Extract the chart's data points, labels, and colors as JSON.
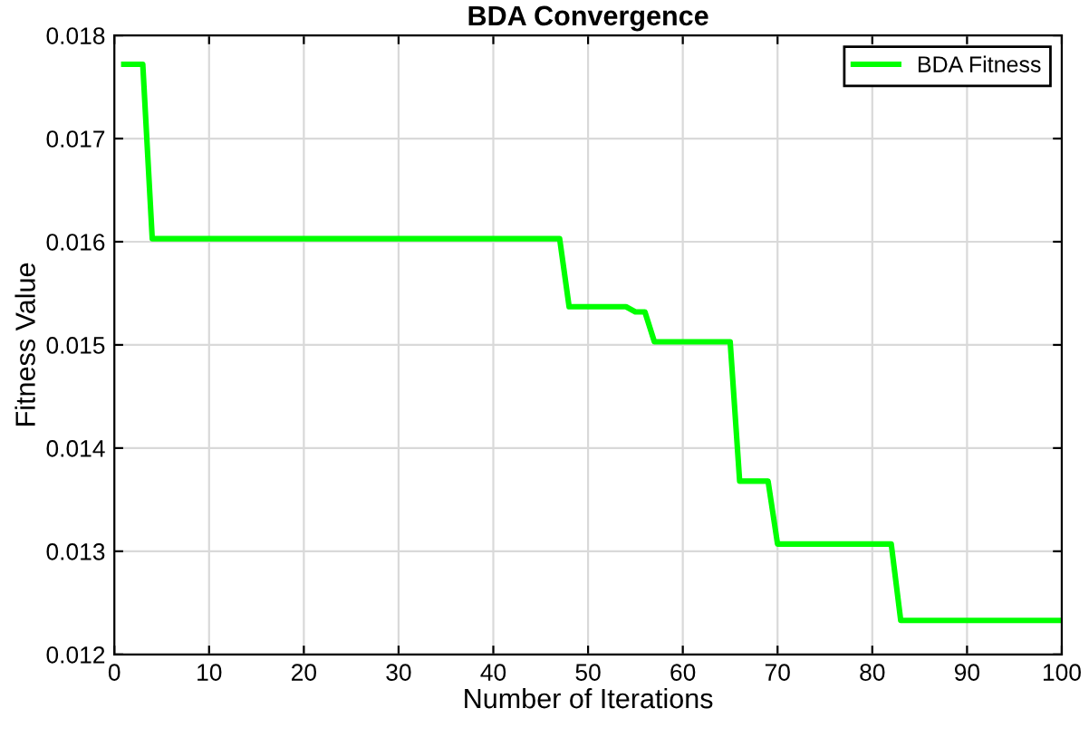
{
  "chart_data": {
    "type": "line",
    "title": "BDA Convergence",
    "xlabel": "Number of Iterations",
    "ylabel": "Fitness Value",
    "x": [
      1,
      3,
      4,
      47,
      48,
      54,
      55,
      56,
      57,
      65,
      66,
      69,
      70,
      82,
      83,
      100
    ],
    "series": [
      {
        "name": "BDA Fitness",
        "color": "#00ff00",
        "values": [
          0.01772,
          0.01772,
          0.01603,
          0.01603,
          0.01537,
          0.01537,
          0.01532,
          0.01532,
          0.01503,
          0.01503,
          0.01368,
          0.01368,
          0.01307,
          0.01307,
          0.01233,
          0.01233
        ]
      }
    ],
    "xlim": [
      0,
      100
    ],
    "xticks": [
      0,
      10,
      20,
      30,
      40,
      50,
      60,
      70,
      80,
      90,
      100
    ],
    "ylim": [
      0.012,
      0.018
    ],
    "yticks": [
      {
        "value": 0.012,
        "label": "0.012"
      },
      {
        "value": 0.013,
        "label": "0.013"
      },
      {
        "value": 0.014,
        "label": "0.014"
      },
      {
        "value": 0.015,
        "label": "0.015"
      },
      {
        "value": 0.016,
        "label": "0.016"
      },
      {
        "value": 0.017,
        "label": "0.017"
      },
      {
        "value": 0.018,
        "label": "0.018"
      }
    ],
    "grid": true,
    "legend": "top right",
    "marker": "none",
    "line_style": "solid"
  }
}
